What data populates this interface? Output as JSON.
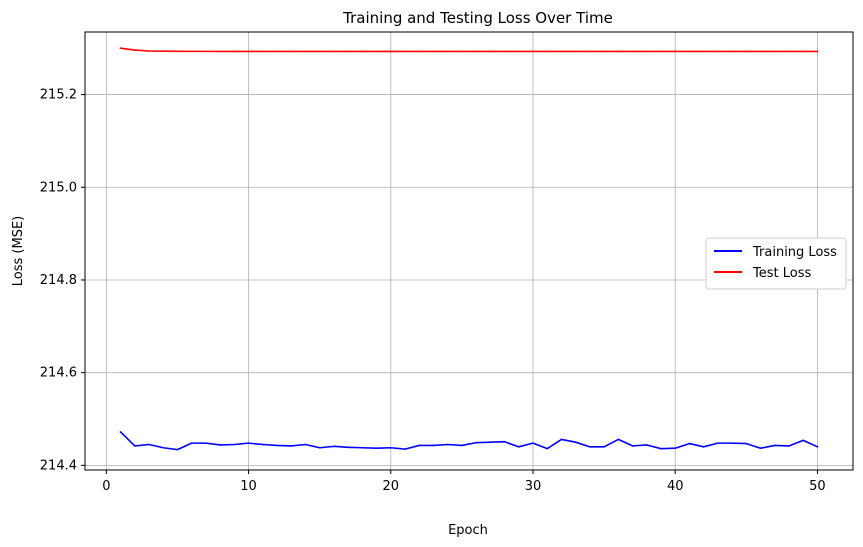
{
  "chart_data": {
    "type": "line",
    "title": "Training and Testing Loss Over Time",
    "xlabel": "Epoch",
    "ylabel": "Loss (MSE)",
    "xlim": [
      -1.5,
      52.5
    ],
    "ylim": [
      214.39,
      215.335
    ],
    "xticks": [
      0,
      10,
      20,
      30,
      40,
      50
    ],
    "xtick_labels": [
      "0",
      "10",
      "20",
      "30",
      "40",
      "50"
    ],
    "yticks": [
      214.4,
      214.6,
      214.8,
      215.0,
      215.2
    ],
    "ytick_labels": [
      "214.4",
      "214.6",
      "214.8",
      "215.0",
      "215.2"
    ],
    "grid": true,
    "legend_position": "center-right",
    "x": [
      1,
      2,
      3,
      4,
      5,
      6,
      7,
      8,
      9,
      10,
      11,
      12,
      13,
      14,
      15,
      16,
      17,
      18,
      19,
      20,
      21,
      22,
      23,
      24,
      25,
      26,
      27,
      28,
      29,
      30,
      31,
      32,
      33,
      34,
      35,
      36,
      37,
      38,
      39,
      40,
      41,
      42,
      43,
      44,
      45,
      46,
      47,
      48,
      49,
      50
    ],
    "series": [
      {
        "name": "Training Loss",
        "color": "#0000ff",
        "values": [
          214.472,
          214.442,
          214.445,
          214.438,
          214.434,
          214.448,
          214.448,
          214.444,
          214.445,
          214.448,
          214.445,
          214.443,
          214.442,
          214.445,
          214.438,
          214.441,
          214.439,
          214.438,
          214.437,
          214.438,
          214.435,
          214.443,
          214.443,
          214.445,
          214.443,
          214.449,
          214.45,
          214.451,
          214.44,
          214.448,
          214.436,
          214.456,
          214.45,
          214.44,
          214.44,
          214.456,
          214.442,
          214.444,
          214.436,
          214.437,
          214.447,
          214.44,
          214.448,
          214.448,
          214.447,
          214.437,
          214.443,
          214.442,
          214.454,
          214.44
        ]
      },
      {
        "name": "Test Loss",
        "color": "#ff0000",
        "values": [
          215.3,
          215.296,
          215.294,
          215.2935,
          215.2933,
          215.2932,
          215.2932,
          215.2931,
          215.2931,
          215.2931,
          215.2931,
          215.2931,
          215.2931,
          215.2931,
          215.2931,
          215.2931,
          215.2931,
          215.2931,
          215.2931,
          215.2931,
          215.2931,
          215.2931,
          215.2931,
          215.2931,
          215.2931,
          215.2931,
          215.2931,
          215.2931,
          215.2931,
          215.2931,
          215.2931,
          215.2931,
          215.2931,
          215.2931,
          215.2931,
          215.2931,
          215.2931,
          215.2931,
          215.2931,
          215.2931,
          215.2931,
          215.2931,
          215.2931,
          215.2931,
          215.2931,
          215.2931,
          215.2931,
          215.2931,
          215.2931,
          215.2931
        ]
      }
    ]
  }
}
